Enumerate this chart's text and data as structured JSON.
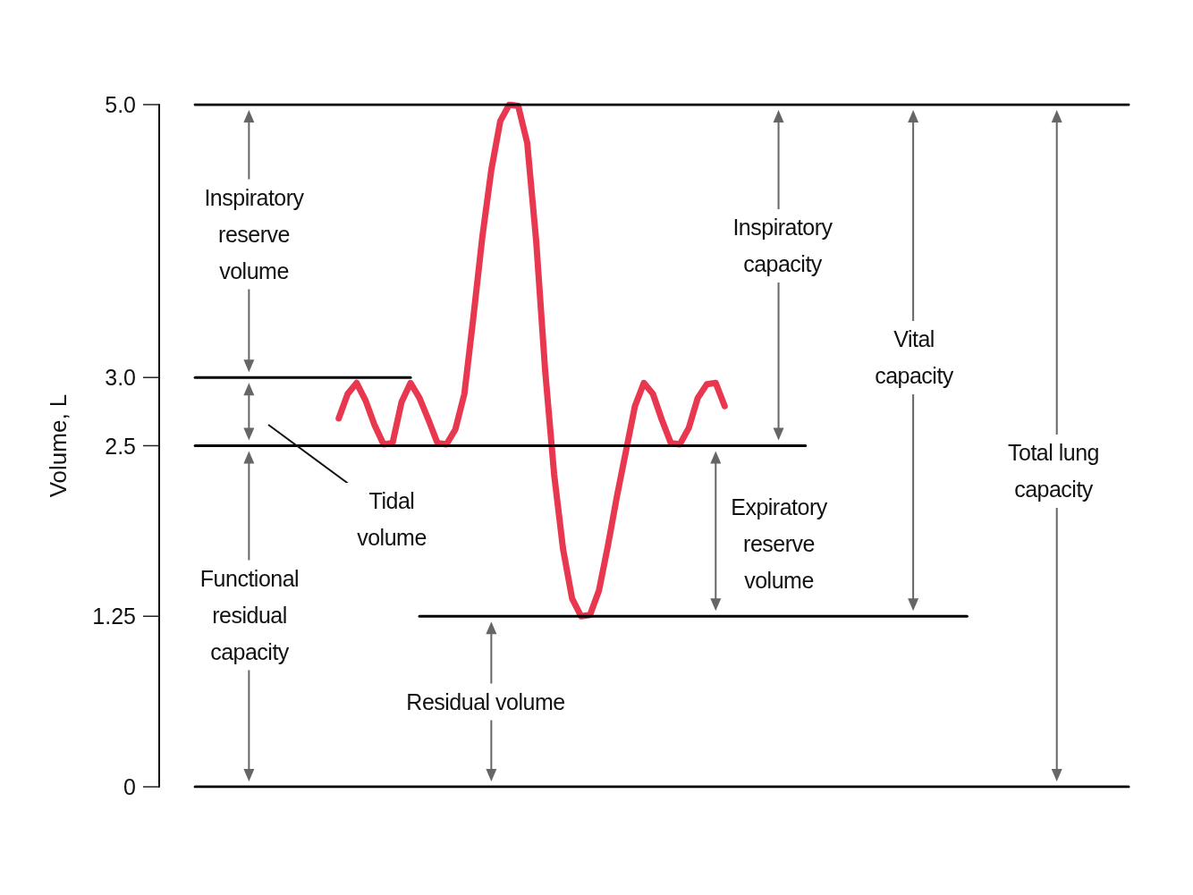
{
  "chart_data": {
    "type": "line",
    "ylabel": "Volume, L",
    "categories": [
      null,
      null,
      null,
      null,
      null,
      null,
      null,
      null,
      null,
      null,
      null,
      null,
      null,
      null,
      null,
      null,
      null,
      null,
      null,
      null,
      null,
      null,
      null,
      null,
      null,
      null,
      null,
      null,
      null,
      null,
      null,
      null,
      null,
      null,
      null,
      null,
      null,
      null,
      null,
      null,
      null,
      null,
      null,
      null,
      null,
      null,
      null,
      null,
      null,
      null,
      null,
      null,
      null,
      null,
      null,
      null,
      null,
      null,
      null,
      null,
      null,
      null,
      null,
      null,
      null,
      null,
      null,
      null,
      null,
      null,
      null,
      null,
      null,
      null,
      null,
      null,
      null,
      null,
      null,
      null,
      null,
      null,
      null,
      null,
      null,
      null,
      null,
      null,
      null,
      null,
      null,
      null,
      null,
      null,
      null,
      null,
      null,
      null,
      null,
      null,
      null,
      null,
      null,
      null,
      null,
      null,
      null,
      null,
      null
    ],
    "ylim": [
      0,
      5
    ],
    "yticks": [
      0,
      1.25,
      2.5,
      {
        "value": 3,
        "label": "3.0"
      },
      {
        "value": 5,
        "label": "5.0"
      }
    ],
    "tick_labels": "y",
    "grid": false,
    "marker": "none",
    "line_style": "solid",
    "annotations": [
      "Inspiratory reserve volume",
      "Tidal volume",
      "Functional residual capacity",
      "Residual volume",
      "Inspiratory capacity",
      "Expiratory reserve volume",
      "Vital capacity",
      "Total lung capacity"
    ],
    "series": [
      {
        "color": "#e8384f",
        "values": [
          null,
          null,
          null,
          null,
          null,
          null,
          null,
          null,
          null,
          null,
          null,
          null,
          null,
          null,
          null,
          null,
          null,
          null,
          null,
          null,
          2.7,
          2.88,
          2.96,
          2.83,
          2.65,
          2.51,
          2.52,
          2.82,
          2.96,
          2.85,
          2.69,
          2.52,
          2.51,
          2.62,
          2.88,
          3.44,
          4.03,
          4.52,
          4.88,
          5.0,
          4.99,
          4.72,
          4.0,
          3.05,
          2.29,
          1.74,
          1.38,
          1.25,
          1.26,
          1.44,
          1.77,
          2.13,
          2.46,
          2.79,
          2.96,
          2.88,
          2.69,
          2.52,
          2.51,
          2.63,
          2.85,
          2.95,
          2.96,
          2.79,
          null,
          null,
          null,
          null,
          null,
          null,
          null,
          null,
          null,
          null,
          null,
          null,
          null,
          null,
          null,
          null,
          null,
          null,
          null,
          null,
          null,
          null,
          null,
          null,
          null,
          null,
          null,
          null,
          null,
          null,
          null,
          null,
          null,
          null,
          null,
          null,
          null,
          null,
          null,
          null,
          null,
          null,
          null,
          null,
          null
        ]
      },
      {
        "color": "#000000",
        "values": [
          null,
          null,
          null,
          null,
          5,
          5,
          5,
          5,
          5,
          5,
          5,
          5,
          5,
          5,
          5,
          5,
          5,
          5,
          5,
          5,
          5,
          5,
          5,
          5,
          5,
          5,
          5,
          5,
          5,
          5,
          5,
          5,
          5,
          5,
          5,
          5,
          5,
          5,
          5,
          5,
          5,
          5,
          5,
          5,
          5,
          5,
          5,
          5,
          5,
          5,
          5,
          5,
          5,
          5,
          5,
          5,
          5,
          5,
          5,
          5,
          5,
          5,
          5,
          5,
          5,
          5,
          5,
          5,
          5,
          5,
          5,
          5,
          5,
          5,
          5,
          5,
          5,
          5,
          5,
          5,
          5,
          5,
          5,
          5,
          5,
          5,
          5,
          5,
          5,
          5,
          5,
          5,
          5,
          5,
          5,
          5,
          5,
          5,
          5,
          5,
          5,
          5,
          5,
          5,
          5,
          5,
          5,
          5,
          5
        ]
      },
      {
        "color": "#000000",
        "values": [
          null,
          null,
          null,
          null,
          3,
          3,
          3,
          3,
          3,
          3,
          3,
          3,
          3,
          3,
          3,
          3,
          3,
          3,
          3,
          3,
          3,
          3,
          3,
          3,
          3,
          3,
          3,
          3,
          3,
          null,
          null,
          null,
          null,
          null,
          null,
          null,
          null,
          null,
          null,
          null,
          null,
          null,
          null,
          null,
          null,
          null,
          null,
          null,
          null,
          null,
          null,
          null,
          null,
          null,
          null,
          null,
          null,
          null,
          null,
          null,
          null,
          null,
          null,
          null,
          null,
          null,
          null,
          null,
          null,
          null,
          null,
          null,
          null,
          null,
          null,
          null,
          null,
          null,
          null,
          null,
          null,
          null,
          null,
          null,
          null,
          null,
          null,
          null,
          null,
          null,
          null,
          null,
          null,
          null,
          null,
          null,
          null,
          null,
          null,
          null,
          null,
          null,
          null,
          null,
          null,
          null,
          null,
          null,
          null
        ]
      },
      {
        "color": "#000000",
        "values": [
          null,
          null,
          null,
          null,
          2.5,
          2.5,
          2.5,
          2.5,
          2.5,
          2.5,
          2.5,
          2.5,
          2.5,
          2.5,
          2.5,
          2.5,
          2.5,
          2.5,
          2.5,
          2.5,
          2.5,
          2.5,
          2.5,
          2.5,
          2.5,
          2.5,
          2.5,
          2.5,
          2.5,
          2.5,
          2.5,
          2.5,
          2.5,
          2.5,
          2.5,
          2.5,
          2.5,
          2.5,
          2.5,
          2.5,
          2.5,
          2.5,
          2.5,
          2.5,
          2.5,
          2.5,
          2.5,
          2.5,
          2.5,
          2.5,
          2.5,
          2.5,
          2.5,
          2.5,
          2.5,
          2.5,
          2.5,
          2.5,
          2.5,
          2.5,
          2.5,
          2.5,
          2.5,
          2.5,
          2.5,
          2.5,
          2.5,
          2.5,
          2.5,
          2.5,
          2.5,
          2.5,
          2.5,
          null,
          null,
          null,
          null,
          null,
          null,
          null,
          null,
          null,
          null,
          null,
          null,
          null,
          null,
          null,
          null,
          null,
          null,
          null,
          null,
          null,
          null,
          null,
          null,
          null,
          null,
          null,
          null,
          null,
          null,
          null,
          null,
          null,
          null,
          null,
          null
        ]
      },
      {
        "color": "#000000",
        "values": [
          null,
          null,
          null,
          null,
          null,
          null,
          null,
          null,
          null,
          null,
          null,
          null,
          null,
          null,
          null,
          null,
          null,
          null,
          null,
          null,
          null,
          null,
          null,
          null,
          null,
          null,
          null,
          null,
          null,
          1.25,
          1.25,
          1.25,
          1.25,
          1.25,
          1.25,
          1.25,
          1.25,
          1.25,
          1.25,
          1.25,
          1.25,
          1.25,
          1.25,
          1.25,
          1.25,
          1.25,
          1.25,
          1.25,
          1.25,
          1.25,
          1.25,
          1.25,
          1.25,
          1.25,
          1.25,
          1.25,
          1.25,
          1.25,
          1.25,
          1.25,
          1.25,
          1.25,
          1.25,
          1.25,
          1.25,
          1.25,
          1.25,
          1.25,
          1.25,
          1.25,
          1.25,
          1.25,
          1.25,
          1.25,
          1.25,
          1.25,
          1.25,
          1.25,
          1.25,
          1.25,
          1.25,
          1.25,
          1.25,
          1.25,
          1.25,
          1.25,
          1.25,
          1.25,
          1.25,
          1.25,
          1.25,
          null,
          null,
          null,
          null,
          null,
          null,
          null,
          null,
          null,
          null,
          null,
          null,
          null,
          null,
          null,
          null,
          null,
          null
        ]
      },
      {
        "color": "#000000",
        "values": [
          null,
          null,
          null,
          null,
          0,
          0,
          0,
          0,
          0,
          0,
          0,
          0,
          0,
          0,
          0,
          0,
          0,
          0,
          0,
          0,
          0,
          0,
          0,
          0,
          0,
          0,
          0,
          0,
          0,
          0,
          0,
          0,
          0,
          0,
          0,
          0,
          0,
          0,
          0,
          0,
          0,
          0,
          0,
          0,
          0,
          0,
          0,
          0,
          0,
          0,
          0,
          0,
          0,
          0,
          0,
          0,
          0,
          0,
          0,
          0,
          0,
          0,
          0,
          0,
          0,
          0,
          0,
          0,
          0,
          0,
          0,
          0,
          0,
          0,
          0,
          0,
          0,
          0,
          0,
          0,
          0,
          0,
          0,
          0,
          0,
          0,
          0,
          0,
          0,
          0,
          0,
          0,
          0,
          0,
          0,
          0,
          0,
          0,
          0,
          0,
          0,
          0,
          0,
          0,
          0,
          0,
          0,
          0,
          0
        ]
      }
    ]
  }
}
